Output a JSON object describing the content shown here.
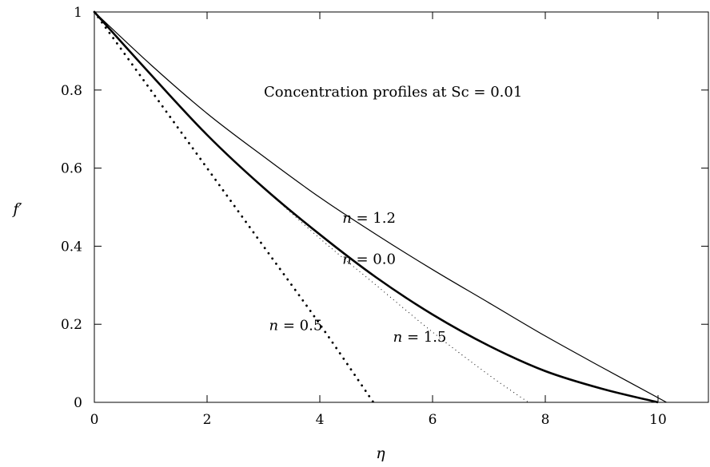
{
  "chart_data": {
    "type": "line",
    "title": "Concentration profiles at Sc = 0.01",
    "xlabel": "η",
    "ylabel": "f′",
    "xlim": [
      0,
      11
    ],
    "ylim": [
      0,
      1
    ],
    "x_ticks": [
      0,
      2,
      4,
      6,
      8,
      10
    ],
    "y_ticks": [
      0,
      0.2,
      0.4,
      0.6,
      0.8,
      1
    ],
    "grid": false,
    "legend": "none",
    "series": [
      {
        "name": "",
        "label": "n = 1.2",
        "style": "thin-solid",
        "x": [
          0,
          1,
          2,
          3,
          4,
          5,
          6,
          7,
          8,
          9,
          10.15
        ],
        "y": [
          1,
          0.865,
          0.74,
          0.63,
          0.525,
          0.43,
          0.34,
          0.255,
          0.17,
          0.09,
          0.0
        ]
      },
      {
        "name": "",
        "label": "n = 0.0",
        "style": "thick-solid",
        "x": [
          0,
          1,
          2,
          3,
          4,
          5,
          6,
          7,
          8,
          9,
          10
        ],
        "y": [
          1,
          0.84,
          0.685,
          0.55,
          0.43,
          0.32,
          0.225,
          0.145,
          0.08,
          0.035,
          0.0
        ]
      },
      {
        "name": "",
        "label": "n = 1.5",
        "style": "fine-dotted",
        "x": [
          0,
          1,
          2,
          3,
          4,
          5,
          6,
          7,
          7.7
        ],
        "y": [
          1,
          0.84,
          0.685,
          0.55,
          0.42,
          0.3,
          0.18,
          0.07,
          0.0
        ]
      },
      {
        "name": "",
        "label": "n = 0.5",
        "style": "coarse-dotted",
        "x": [
          0,
          1,
          2,
          3,
          4,
          4.95
        ],
        "y": [
          1,
          0.8,
          0.6,
          0.4,
          0.2,
          0.0
        ]
      }
    ],
    "annotations": [
      {
        "prefix": "n",
        "text": " = 1.2",
        "x": 4.4,
        "y": 0.46
      },
      {
        "prefix": "n",
        "text": " = 0.0",
        "x": 4.4,
        "y": 0.355
      },
      {
        "prefix": "n",
        "text": " = 0.5",
        "x": 3.1,
        "y": 0.185
      },
      {
        "prefix": "n",
        "text": " = 1.5",
        "x": 5.3,
        "y": 0.155
      }
    ]
  }
}
